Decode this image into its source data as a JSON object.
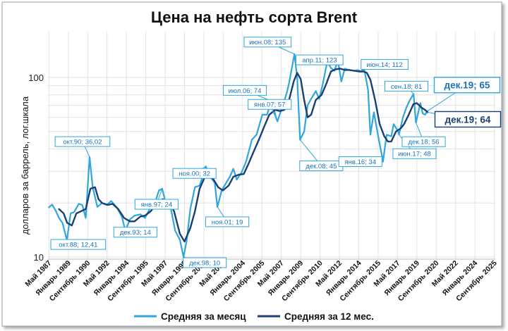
{
  "chart_data": {
    "type": "line",
    "title": "Цена на нефть сорта Brent",
    "ylabel": "долларов за баррель, лог.шкала",
    "xlabel": "",
    "yscale": "log",
    "ylim": [
      10,
      150
    ],
    "xlim": [
      1987.25,
      2025.75
    ],
    "yticks": [
      10,
      100
    ],
    "ytick_labels": [
      "10",
      "100"
    ],
    "xtick_labels": [
      {
        "x": 1987.33,
        "label": "Май 1987"
      },
      {
        "x": 1989.0,
        "label": "Январь 1989"
      },
      {
        "x": 1990.67,
        "label": "Сентябрь 1990"
      },
      {
        "x": 1992.33,
        "label": "Май 1992"
      },
      {
        "x": 1994.0,
        "label": "Январь 1994"
      },
      {
        "x": 1995.67,
        "label": "Сентябрь 1995"
      },
      {
        "x": 1997.33,
        "label": "Май 1997"
      },
      {
        "x": 1999.0,
        "label": "Январь 1999"
      },
      {
        "x": 2000.67,
        "label": "Сентябрь 2000"
      },
      {
        "x": 2002.33,
        "label": "Май 2002"
      },
      {
        "x": 2004.0,
        "label": "Январь 2004"
      },
      {
        "x": 2005.67,
        "label": "Сентябрь 2005"
      },
      {
        "x": 2007.33,
        "label": "Май 2007"
      },
      {
        "x": 2009.0,
        "label": "Январь 2009"
      },
      {
        "x": 2010.67,
        "label": "Сентябрь 2010"
      },
      {
        "x": 2012.33,
        "label": "Май 2012"
      },
      {
        "x": 2014.0,
        "label": "Январь 2014"
      },
      {
        "x": 2015.67,
        "label": "Сентябрь 2015"
      },
      {
        "x": 2017.33,
        "label": "Май 2017"
      },
      {
        "x": 2019.0,
        "label": "Январь 2019"
      },
      {
        "x": 2020.67,
        "label": "Сентябрь 2020"
      },
      {
        "x": 2022.33,
        "label": "Май 2022"
      },
      {
        "x": 2024.0,
        "label": "Январь 2024"
      },
      {
        "x": 2025.67,
        "label": "Сентябрь 2025"
      }
    ],
    "grid": true,
    "legend": "bottom",
    "series": [
      {
        "name": "Средняя за месяц",
        "color": "#2fa6dc",
        "points": [
          [
            1987.33,
            18.9
          ],
          [
            1987.6,
            19.6
          ],
          [
            1987.9,
            18.2
          ],
          [
            1988.2,
            16.5
          ],
          [
            1988.5,
            15.5
          ],
          [
            1988.88,
            12.41
          ],
          [
            1989.2,
            17.5
          ],
          [
            1989.5,
            17.8
          ],
          [
            1989.9,
            19.8
          ],
          [
            1990.2,
            19.5
          ],
          [
            1990.5,
            16.5
          ],
          [
            1990.83,
            36.02
          ],
          [
            1991.1,
            24.5
          ],
          [
            1991.5,
            19.0
          ],
          [
            1991.9,
            20.0
          ],
          [
            1992.3,
            19.5
          ],
          [
            1992.7,
            20.5
          ],
          [
            1993.2,
            18.8
          ],
          [
            1993.6,
            16.8
          ],
          [
            1993.92,
            14.0
          ],
          [
            1994.3,
            16.2
          ],
          [
            1994.7,
            17.0
          ],
          [
            1995.2,
            17.3
          ],
          [
            1995.6,
            16.5
          ],
          [
            1996.0,
            18.5
          ],
          [
            1996.4,
            19.5
          ],
          [
            1996.8,
            23.5
          ],
          [
            1997.08,
            24.0
          ],
          [
            1997.4,
            19.8
          ],
          [
            1997.8,
            19.0
          ],
          [
            1998.2,
            14.0
          ],
          [
            1998.6,
            12.5
          ],
          [
            1998.92,
            10.0
          ],
          [
            1999.2,
            12.5
          ],
          [
            1999.5,
            18.5
          ],
          [
            1999.9,
            24.5
          ],
          [
            2000.3,
            25.0
          ],
          [
            2000.6,
            28.5
          ],
          [
            2000.83,
            32.0
          ],
          [
            2001.3,
            27.5
          ],
          [
            2001.6,
            26.0
          ],
          [
            2001.83,
            19.0
          ],
          [
            2002.2,
            23.5
          ],
          [
            2002.6,
            26.0
          ],
          [
            2002.9,
            28.0
          ],
          [
            2003.2,
            31.0
          ],
          [
            2003.5,
            27.0
          ],
          [
            2003.9,
            29.5
          ],
          [
            2004.3,
            34.0
          ],
          [
            2004.8,
            45.0
          ],
          [
            2005.2,
            48.0
          ],
          [
            2005.7,
            62.0
          ],
          [
            2006.1,
            62.0
          ],
          [
            2006.5,
            74.0
          ],
          [
            2006.9,
            59.0
          ],
          [
            2007.0,
            57.0
          ],
          [
            2007.4,
            68.0
          ],
          [
            2007.8,
            82.0
          ],
          [
            2008.0,
            93.0
          ],
          [
            2008.46,
            135.0
          ],
          [
            2008.7,
            100.0
          ],
          [
            2008.95,
            45.0
          ],
          [
            2009.3,
            50.0
          ],
          [
            2009.6,
            70.0
          ],
          [
            2009.9,
            76.0
          ],
          [
            2010.3,
            84.0
          ],
          [
            2010.6,
            76.0
          ],
          [
            2010.9,
            92.0
          ],
          [
            2011.29,
            123.0
          ],
          [
            2011.6,
            113.0
          ],
          [
            2011.9,
            109.0
          ],
          [
            2012.2,
            124.0
          ],
          [
            2012.5,
            95.0
          ],
          [
            2012.8,
            112.0
          ],
          [
            2013.2,
            110.0
          ],
          [
            2013.6,
            109.0
          ],
          [
            2013.9,
            110.0
          ],
          [
            2014.2,
            108.0
          ],
          [
            2014.46,
            112.0
          ],
          [
            2014.8,
            85.0
          ],
          [
            2015.0,
            48.0
          ],
          [
            2015.3,
            64.0
          ],
          [
            2015.7,
            46.0
          ],
          [
            2015.95,
            38.0
          ],
          [
            2016.08,
            34.0
          ],
          [
            2016.4,
            48.0
          ],
          [
            2016.8,
            47.0
          ],
          [
            2017.0,
            55.0
          ],
          [
            2017.4,
            50.0
          ],
          [
            2017.46,
            48.0
          ],
          [
            2017.8,
            60.0
          ],
          [
            2018.1,
            68.0
          ],
          [
            2018.4,
            75.0
          ],
          [
            2018.71,
            81.0
          ],
          [
            2018.92,
            56.0
          ],
          [
            2019.3,
            72.0
          ],
          [
            2019.5,
            63.0
          ],
          [
            2019.7,
            62.0
          ],
          [
            2019.92,
            65.0
          ]
        ]
      },
      {
        "name": "Средняя за 12 мес.",
        "color": "#1b3f73",
        "points": [
          [
            1988.2,
            18.5
          ],
          [
            1988.6,
            17.5
          ],
          [
            1988.9,
            15.5
          ],
          [
            1989.3,
            15.0
          ],
          [
            1989.7,
            17.5
          ],
          [
            1990.1,
            18.0
          ],
          [
            1990.5,
            18.5
          ],
          [
            1990.9,
            24.0
          ],
          [
            1991.3,
            24.5
          ],
          [
            1991.6,
            21.0
          ],
          [
            1991.9,
            20.0
          ],
          [
            1992.4,
            19.5
          ],
          [
            1992.8,
            19.8
          ],
          [
            1993.3,
            18.5
          ],
          [
            1993.8,
            16.5
          ],
          [
            1994.3,
            15.8
          ],
          [
            1994.7,
            15.8
          ],
          [
            1995.2,
            16.8
          ],
          [
            1995.6,
            17.0
          ],
          [
            1996.1,
            18.0
          ],
          [
            1996.6,
            19.8
          ],
          [
            1997.1,
            21.0
          ],
          [
            1997.6,
            20.5
          ],
          [
            1998.1,
            18.0
          ],
          [
            1998.6,
            13.5
          ],
          [
            1999.0,
            12.2
          ],
          [
            1999.5,
            14.5
          ],
          [
            1999.9,
            18.0
          ],
          [
            2000.3,
            24.0
          ],
          [
            2000.7,
            27.5
          ],
          [
            2001.1,
            28.5
          ],
          [
            2001.5,
            27.0
          ],
          [
            2001.9,
            24.5
          ],
          [
            2002.3,
            23.5
          ],
          [
            2002.8,
            25.0
          ],
          [
            2003.2,
            28.0
          ],
          [
            2003.7,
            28.8
          ],
          [
            2004.1,
            29.0
          ],
          [
            2004.5,
            33.0
          ],
          [
            2004.9,
            38.0
          ],
          [
            2005.4,
            45.0
          ],
          [
            2005.9,
            54.0
          ],
          [
            2006.3,
            62.0
          ],
          [
            2006.8,
            66.0
          ],
          [
            2007.2,
            65.0
          ],
          [
            2007.6,
            66.0
          ],
          [
            2008.0,
            75.0
          ],
          [
            2008.4,
            95.0
          ],
          [
            2008.7,
            106.0
          ],
          [
            2009.0,
            98.0
          ],
          [
            2009.3,
            75.0
          ],
          [
            2009.6,
            60.0
          ],
          [
            2009.9,
            62.0
          ],
          [
            2010.3,
            75.0
          ],
          [
            2010.8,
            80.0
          ],
          [
            2011.2,
            92.0
          ],
          [
            2011.6,
            108.0
          ],
          [
            2012.0,
            111.0
          ],
          [
            2012.4,
            112.0
          ],
          [
            2012.8,
            110.0
          ],
          [
            2013.2,
            110.0
          ],
          [
            2013.6,
            109.0
          ],
          [
            2014.0,
            108.0
          ],
          [
            2014.4,
            108.0
          ],
          [
            2014.7,
            106.0
          ],
          [
            2015.0,
            97.0
          ],
          [
            2015.4,
            75.0
          ],
          [
            2015.8,
            55.0
          ],
          [
            2016.2,
            47.0
          ],
          [
            2016.5,
            44.0
          ],
          [
            2016.8,
            44.0
          ],
          [
            2017.2,
            50.0
          ],
          [
            2017.6,
            52.0
          ],
          [
            2017.9,
            55.0
          ],
          [
            2018.3,
            62.0
          ],
          [
            2018.7,
            71.0
          ],
          [
            2019.0,
            72.0
          ],
          [
            2019.4,
            68.0
          ],
          [
            2019.7,
            66.0
          ],
          [
            2019.92,
            64.0
          ]
        ]
      }
    ],
    "annotations": [
      {
        "text": "окт.88; 12,41",
        "x": 1988.88,
        "y": 12.41,
        "series": 0
      },
      {
        "text": "окт.90; 36,02",
        "x": 1990.83,
        "y": 36.02,
        "series": 0
      },
      {
        "text": "дек.93; 14",
        "x": 1993.92,
        "y": 14,
        "series": 0
      },
      {
        "text": "янв.97; 24",
        "x": 1997.08,
        "y": 24,
        "series": 0
      },
      {
        "text": "дек.98; 10",
        "x": 1998.92,
        "y": 10,
        "series": 0
      },
      {
        "text": "ноя.00; 32",
        "x": 2000.83,
        "y": 32,
        "series": 0
      },
      {
        "text": "ноя.01; 19",
        "x": 2001.83,
        "y": 19,
        "series": 0
      },
      {
        "text": "июл.06; 74",
        "x": 2006.5,
        "y": 74,
        "series": 0
      },
      {
        "text": "янв.07; 57",
        "x": 2007.0,
        "y": 57,
        "series": 0
      },
      {
        "text": "июн.08; 135",
        "x": 2008.46,
        "y": 135,
        "series": 0
      },
      {
        "text": "дек.08; 45",
        "x": 2008.95,
        "y": 45,
        "series": 0
      },
      {
        "text": "апр.11; 123",
        "x": 2011.29,
        "y": 123,
        "series": 0
      },
      {
        "text": "июн.14; 112",
        "x": 2014.46,
        "y": 112,
        "series": 0
      },
      {
        "text": "янв.16; 34",
        "x": 2016.08,
        "y": 34,
        "series": 0
      },
      {
        "text": "июн.17; 48",
        "x": 2017.46,
        "y": 48,
        "series": 0
      },
      {
        "text": "сен.18; 81",
        "x": 2018.71,
        "y": 81,
        "series": 0
      },
      {
        "text": "дек.18; 56",
        "x": 2018.92,
        "y": 56,
        "series": 0
      },
      {
        "text": "дек.19; 65",
        "x": 2019.92,
        "y": 65,
        "series": 0,
        "emphasis": true
      },
      {
        "text": "дек.19; 64",
        "x": 2019.92,
        "y": 64,
        "series": 1,
        "emphasis": true
      }
    ]
  }
}
